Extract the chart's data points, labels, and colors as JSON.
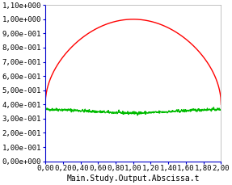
{
  "title": "",
  "xlabel": "Main.Study.Output.Abscissa.t",
  "xlim": [
    0.0,
    2.0
  ],
  "ylim": [
    0.0,
    1.1
  ],
  "xticks": [
    0.0,
    0.2,
    0.4,
    0.6,
    0.8,
    1.0,
    1.2,
    1.4,
    1.6,
    1.8,
    2.0
  ],
  "yticks": [
    0.0,
    0.1,
    0.2,
    0.3,
    0.4,
    0.5,
    0.6,
    0.7,
    0.8,
    0.9,
    1.0,
    1.1
  ],
  "xtick_labels": [
    "0,00",
    "0,20",
    "0,40",
    "0,60",
    "0,80",
    "1,00",
    "1,20",
    "1,40",
    "1,60",
    "1,80",
    "2,00"
  ],
  "ytick_labels": [
    "0,00e+000",
    "1,00e-001",
    "2,00e-001",
    "3,00e-001",
    "4,00e-001",
    "5,00e-001",
    "6,00e-001",
    "7,00e-001",
    "8,00e-001",
    "9,00e-001",
    "1,00e+000",
    "1,10e+000"
  ],
  "red_color": "#ff0000",
  "green_color": "#00bb00",
  "blue_axis_color": "#0000cc",
  "background_color": "#ffffff",
  "border_color": "#aaaaaa",
  "line_width": 1.0,
  "fontsize": 6.5,
  "xlabel_fontsize": 7
}
